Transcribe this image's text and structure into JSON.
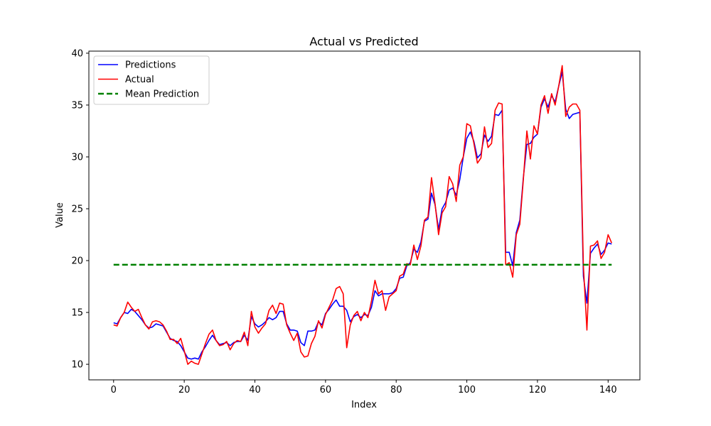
{
  "chart_data": {
    "type": "line",
    "title": "Actual vs Predicted",
    "xlabel": "Index",
    "ylabel": "Value",
    "xlim": [
      -7,
      149
    ],
    "ylim": [
      8.5,
      40.2
    ],
    "xticks": [
      0,
      20,
      40,
      60,
      80,
      100,
      120,
      140
    ],
    "yticks": [
      10,
      15,
      20,
      25,
      30,
      35,
      40
    ],
    "grid": false,
    "legend_position": "top-left",
    "series": [
      {
        "name": "Predictions",
        "color": "#0000ff",
        "style": "solid",
        "values": [
          14.0,
          13.9,
          14.5,
          15.0,
          14.9,
          15.3,
          15.1,
          14.7,
          14.3,
          13.8,
          13.5,
          13.6,
          13.9,
          13.8,
          13.7,
          13.1,
          12.5,
          12.3,
          12.2,
          11.8,
          11.2,
          10.6,
          10.5,
          10.6,
          10.5,
          11.2,
          11.7,
          12.3,
          12.8,
          12.3,
          11.9,
          12.0,
          12.1,
          11.8,
          12.1,
          12.2,
          12.2,
          12.8,
          12.3,
          14.6,
          13.9,
          13.6,
          13.8,
          14.1,
          14.5,
          14.3,
          14.5,
          15.1,
          15.1,
          13.9,
          13.3,
          13.3,
          13.2,
          12.1,
          11.8,
          13.2,
          13.2,
          13.3,
          14.1,
          13.8,
          14.9,
          15.3,
          15.8,
          16.2,
          15.6,
          15.6,
          15.2,
          14.1,
          14.6,
          14.8,
          14.5,
          14.8,
          14.7,
          15.5,
          17.1,
          16.6,
          16.8,
          16.8,
          16.8,
          16.9,
          17.3,
          18.3,
          18.4,
          19.5,
          19.8,
          21.1,
          20.8,
          21.8,
          23.8,
          24.0,
          26.5,
          25.4,
          23.0,
          25.0,
          25.6,
          26.8,
          27.0,
          26.3,
          27.8,
          30.0,
          31.8,
          32.4,
          31.5,
          29.9,
          30.3,
          32.1,
          31.5,
          32.0,
          34.1,
          34.0,
          34.5,
          20.8,
          20.8,
          19.5,
          22.7,
          23.9,
          28.0,
          31.2,
          31.3,
          31.9,
          32.2,
          34.8,
          35.6,
          34.8,
          35.9,
          35.3,
          36.8,
          38.2,
          34.6,
          33.7,
          34.1,
          34.2,
          34.3,
          18.5,
          15.9,
          20.7,
          21.2,
          21.6,
          20.6,
          21.0,
          21.7,
          21.6
        ]
      },
      {
        "name": "Actual",
        "color": "#ff0000",
        "style": "solid",
        "values": [
          13.8,
          13.7,
          14.5,
          15.0,
          16.0,
          15.5,
          15.1,
          15.3,
          14.5,
          13.8,
          13.4,
          14.1,
          14.2,
          14.1,
          13.8,
          13.2,
          12.4,
          12.4,
          12.0,
          12.5,
          11.3,
          10.0,
          10.3,
          10.1,
          10.0,
          11.0,
          12.0,
          12.9,
          13.3,
          12.3,
          11.8,
          11.9,
          12.2,
          11.4,
          12.0,
          12.3,
          12.2,
          13.1,
          11.8,
          15.1,
          13.6,
          13.0,
          13.5,
          13.9,
          15.2,
          15.7,
          14.9,
          15.9,
          15.8,
          13.8,
          13.0,
          12.3,
          13.0,
          11.2,
          10.7,
          10.8,
          12.0,
          12.7,
          14.2,
          13.5,
          14.8,
          15.5,
          16.2,
          17.3,
          17.5,
          16.8,
          11.6,
          13.8,
          14.7,
          15.1,
          14.2,
          15.0,
          14.5,
          16.1,
          18.1,
          16.8,
          17.1,
          15.2,
          16.5,
          16.8,
          17.1,
          18.5,
          18.7,
          19.7,
          19.6,
          21.5,
          20.1,
          21.4,
          23.9,
          24.2,
          28.0,
          25.5,
          22.5,
          24.6,
          25.2,
          28.1,
          27.4,
          25.7,
          29.2,
          30.0,
          33.2,
          33.0,
          31.3,
          29.4,
          29.9,
          32.9,
          30.9,
          31.3,
          34.5,
          35.2,
          35.1,
          19.6,
          19.8,
          18.4,
          22.5,
          23.5,
          27.8,
          32.5,
          29.8,
          33.0,
          32.2,
          35.0,
          35.9,
          34.2,
          36.1,
          35.0,
          36.8,
          38.8,
          33.9,
          34.8,
          35.1,
          35.1,
          34.5,
          19.5,
          13.3,
          21.4,
          21.5,
          21.9,
          20.2,
          20.8,
          22.5,
          21.7
        ]
      },
      {
        "name": "Mean Prediction",
        "color": "#008000",
        "style": "dashed",
        "values": [
          19.6,
          19.6
        ]
      }
    ]
  }
}
